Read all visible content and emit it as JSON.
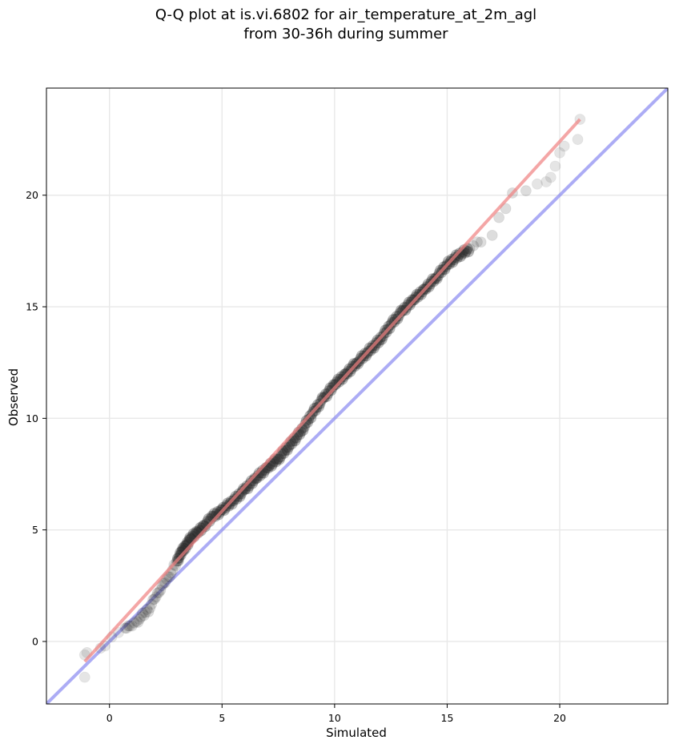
{
  "chart_data": {
    "type": "scatter",
    "title_lines": [
      "Q-Q plot at is.vi.6802 for air_temperature_at_2m_agl",
      "from 30-36h during summer"
    ],
    "xlabel": "Simulated",
    "ylabel": "Observed",
    "xlim": [
      -2.8,
      24.8
    ],
    "ylim": [
      -2.8,
      24.8
    ],
    "xticks": [
      0,
      5,
      10,
      15,
      20
    ],
    "yticks": [
      0,
      5,
      10,
      15,
      20
    ],
    "grid": true,
    "colors": {
      "points": "#2b2b2b",
      "fit_line": "#f08080",
      "identity_line": "#8080f0",
      "grid": "#e8e8e8"
    },
    "series": [
      {
        "kind": "quantile-points",
        "points": [
          [
            -1.1,
            -1.6
          ],
          [
            -1.1,
            -0.6
          ],
          [
            -1.0,
            -0.5
          ],
          [
            -0.4,
            -0.3
          ],
          [
            -0.2,
            -0.2
          ],
          [
            0.1,
            0.2
          ],
          [
            0.4,
            0.4
          ],
          [
            0.7,
            0.6
          ],
          [
            0.9,
            0.7
          ],
          [
            1.2,
            0.9
          ],
          [
            1.4,
            1.1
          ],
          [
            1.6,
            1.3
          ],
          [
            1.8,
            1.5
          ],
          [
            2.0,
            1.9
          ],
          [
            2.2,
            2.2
          ],
          [
            2.4,
            2.6
          ],
          [
            2.6,
            2.9
          ],
          [
            2.8,
            3.2
          ],
          [
            3.0,
            3.6
          ],
          [
            3.2,
            4.0
          ],
          [
            3.4,
            4.3
          ],
          [
            3.6,
            4.6
          ],
          [
            3.9,
            4.9
          ],
          [
            4.2,
            5.2
          ],
          [
            4.6,
            5.6
          ],
          [
            5.0,
            5.9
          ],
          [
            5.5,
            6.3
          ],
          [
            6.0,
            6.8
          ],
          [
            6.5,
            7.3
          ],
          [
            7.0,
            7.8
          ],
          [
            7.5,
            8.2
          ],
          [
            8.0,
            8.8
          ],
          [
            8.5,
            9.4
          ],
          [
            9.0,
            10.2
          ],
          [
            9.5,
            10.9
          ],
          [
            10.0,
            11.5
          ],
          [
            10.5,
            12.0
          ],
          [
            11.0,
            12.5
          ],
          [
            11.5,
            13.0
          ],
          [
            12.0,
            13.5
          ],
          [
            12.5,
            14.2
          ],
          [
            13.0,
            14.8
          ],
          [
            13.5,
            15.3
          ],
          [
            14.0,
            15.8
          ],
          [
            14.5,
            16.3
          ],
          [
            15.0,
            16.9
          ],
          [
            15.5,
            17.3
          ],
          [
            16.0,
            17.6
          ],
          [
            16.5,
            17.9
          ],
          [
            17.0,
            18.2
          ],
          [
            17.3,
            19.0
          ],
          [
            17.6,
            19.4
          ],
          [
            17.9,
            20.1
          ],
          [
            18.5,
            20.2
          ],
          [
            19.0,
            20.5
          ],
          [
            19.4,
            20.6
          ],
          [
            19.6,
            20.8
          ],
          [
            19.8,
            21.3
          ],
          [
            20.0,
            21.9
          ],
          [
            20.2,
            22.2
          ],
          [
            20.8,
            22.5
          ],
          [
            20.9,
            23.4
          ]
        ]
      },
      {
        "kind": "fit-line",
        "points": [
          [
            -1.1,
            -0.9
          ],
          [
            20.9,
            23.4
          ]
        ]
      },
      {
        "kind": "identity-line",
        "points": [
          [
            -2.8,
            -2.8
          ],
          [
            24.8,
            24.8
          ]
        ]
      }
    ]
  }
}
